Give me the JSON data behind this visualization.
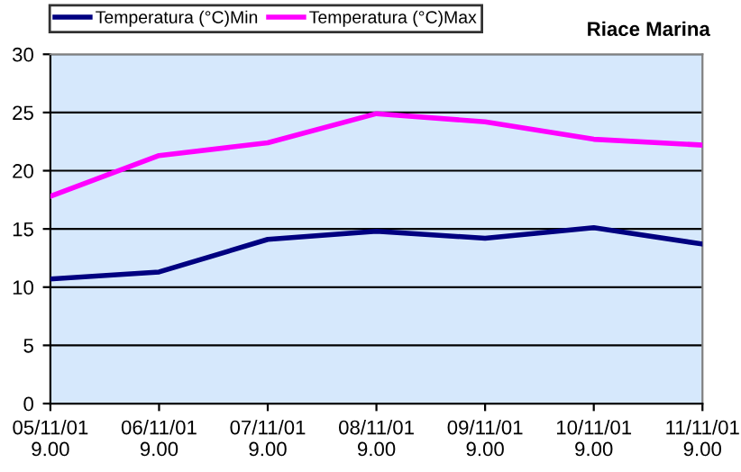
{
  "chart_data": {
    "type": "line",
    "title": "Riace Marina",
    "categories": [
      "05/11/01\n9.00",
      "06/11/01\n9.00",
      "07/11/01\n9.00",
      "08/11/01\n9.00",
      "09/11/01\n9.00",
      "10/11/01\n9.00",
      "11/11/01\n9.00"
    ],
    "series": [
      {
        "name": "Temperatura (°C)Min",
        "color": "#000080",
        "values": [
          10.7,
          11.3,
          14.1,
          14.8,
          14.2,
          15.1,
          13.7
        ]
      },
      {
        "name": "Temperatura (°C)Max",
        "color": "#ff00ff",
        "values": [
          17.8,
          21.3,
          22.4,
          24.9,
          24.2,
          22.7,
          22.2
        ]
      }
    ],
    "ylim": [
      0,
      30
    ],
    "yticks": [
      0,
      5,
      10,
      15,
      20,
      25,
      30
    ],
    "grid": "y",
    "legend": "top",
    "marker": "none",
    "line_style": "solid"
  }
}
